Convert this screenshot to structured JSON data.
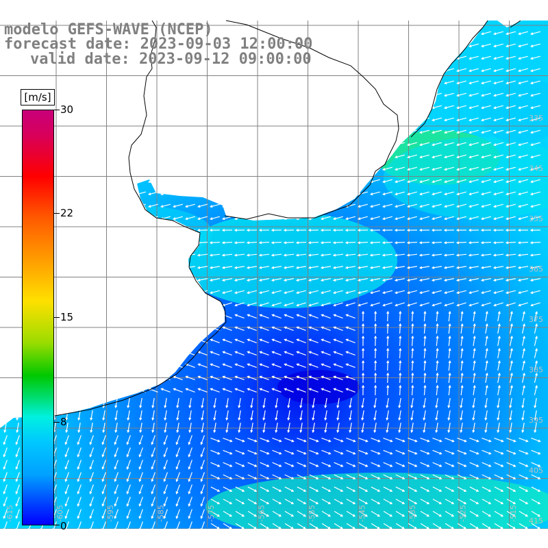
{
  "title": {
    "line1": "modelo GEFS-WAVE (NCEP)",
    "line2": "forecast date: 2023-09-03 12:00:00",
    "line3": "valid date: 2023-09-12 09:00:00"
  },
  "colorbar": {
    "unit": "[m/s]",
    "ticks": [
      "30",
      "22",
      "15",
      "8",
      "0"
    ],
    "tick_values": [
      30,
      22,
      15,
      8,
      0
    ],
    "range": [
      0,
      30
    ]
  },
  "colors": {
    "land": "#ffffff",
    "grid": "#808080",
    "coast": "#000000",
    "arrow": "#ffffff",
    "title": "#808080"
  },
  "map": {
    "right_lat_labels": [
      "335",
      "345",
      "355",
      "365",
      "375",
      "385",
      "395",
      "405",
      "415"
    ],
    "bottom_lon_labels": [
      "-615",
      "-605",
      "-595",
      "-585",
      "-575",
      "-565",
      "-555",
      "-545",
      "-535",
      "-525",
      "-515"
    ],
    "field_description_kind": "wind speed arrows over ocean"
  }
}
